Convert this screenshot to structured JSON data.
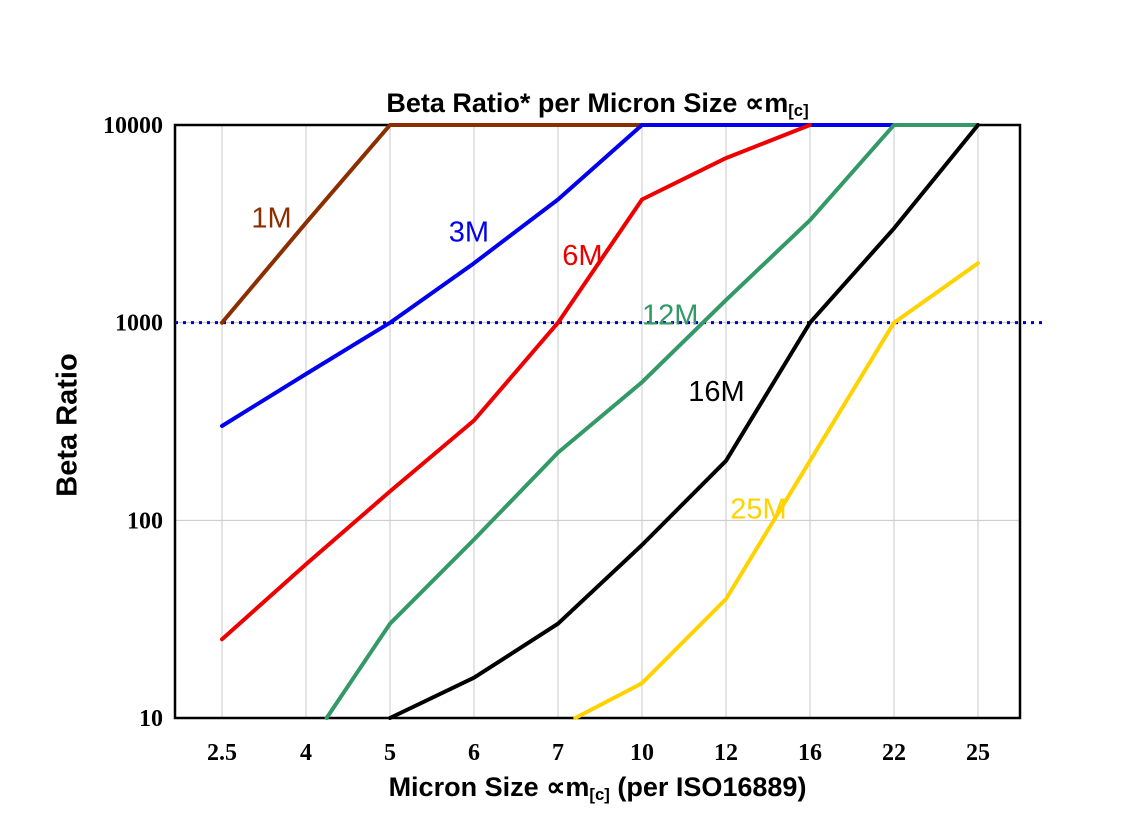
{
  "chart_data": {
    "type": "line",
    "title": {
      "prefix": "Beta Ratio* per Micron Size ",
      "symbol": "∝m",
      "subscript": "[c]"
    },
    "xlabel": {
      "prefix": "Micron Size ",
      "symbol": "∝m",
      "subscript": "[c]",
      "suffix": " (per ISO16889)"
    },
    "ylabel": "Beta Ratio",
    "x_categories": [
      "2.5",
      "4",
      "5",
      "6",
      "7",
      "10",
      "12",
      "16",
      "22",
      "25"
    ],
    "y_scale": "log",
    "ylim": [
      10,
      10000
    ],
    "y_ticks": [
      10,
      100,
      1000,
      10000
    ],
    "grid": {
      "vertical": true,
      "horizontal": [
        100,
        1000
      ],
      "color": "#c8c8c8"
    },
    "reference_line": {
      "value": 1000,
      "color": "#0000cc",
      "style": "dotted"
    },
    "series": [
      {
        "name": "1M",
        "color": "#8b2e00",
        "values": [
          1000,
          3200,
          10000,
          10000,
          10000,
          10000,
          null,
          null,
          null,
          null
        ],
        "label_at": {
          "ci": 0.35,
          "v": 3400
        }
      },
      {
        "name": "3M",
        "color": "#0000ee",
        "values": [
          300,
          550,
          1000,
          2000,
          4200,
          10000,
          10000,
          10000,
          10000,
          null
        ],
        "label_at": {
          "ci": 2.7,
          "v": 2900
        }
      },
      {
        "name": "6M",
        "color": "#ee0000",
        "values": [
          25,
          60,
          140,
          320,
          1000,
          4200,
          6800,
          10000,
          null,
          null
        ],
        "label_at": {
          "ci": 4.05,
          "v": 2200
        }
      },
      {
        "name": "12M",
        "color": "#339966",
        "values": [
          null,
          7,
          30,
          80,
          220,
          500,
          1300,
          3300,
          10000,
          10000
        ],
        "label_at": {
          "ci": 5.0,
          "v": 1100
        }
      },
      {
        "name": "16M",
        "color": "#000000",
        "values": [
          null,
          null,
          10,
          16,
          30,
          75,
          200,
          1000,
          3000,
          10000
        ],
        "label_at": {
          "ci": 5.55,
          "v": 450
        }
      },
      {
        "name": "25M",
        "color": "#ffd200",
        "values": [
          null,
          null,
          null,
          null,
          9,
          15,
          40,
          200,
          1000,
          2000
        ],
        "label_at": {
          "ci": 6.05,
          "v": 115
        }
      }
    ]
  }
}
